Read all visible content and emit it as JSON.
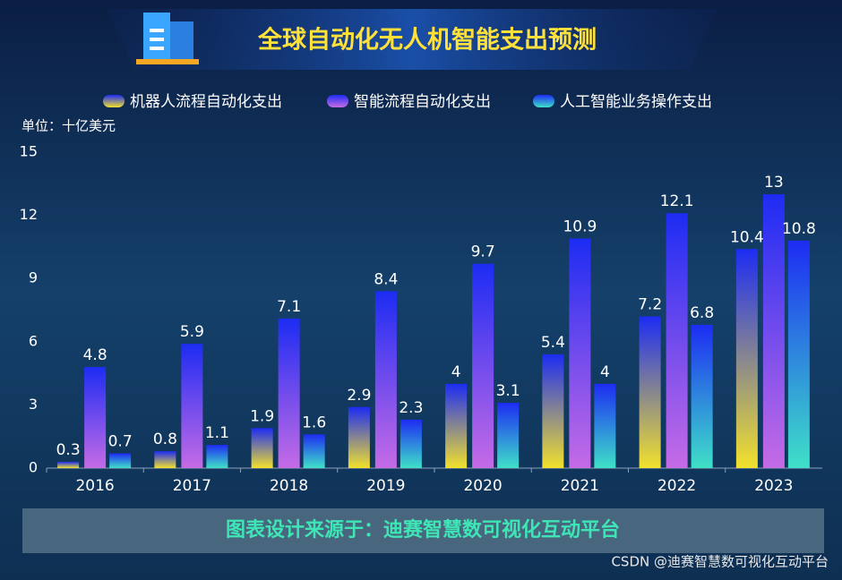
{
  "chart_data": {
    "type": "bar",
    "title": "全球自动化无人机智能支出预测",
    "unit_label": "单位：十亿美元",
    "categories": [
      "2016",
      "2017",
      "2018",
      "2019",
      "2020",
      "2021",
      "2022",
      "2023"
    ],
    "series": [
      {
        "name": "机器人流程自动化支出",
        "color": "#f2e12c",
        "values": [
          0.3,
          0.8,
          1.9,
          2.9,
          4,
          5.4,
          7.2,
          10.4
        ]
      },
      {
        "name": "智能流程自动化支出",
        "color": "#c56be6",
        "values": [
          4.8,
          5.9,
          7.1,
          8.4,
          9.7,
          10.9,
          12.1,
          13
        ]
      },
      {
        "name": "人工智能业务操作支出",
        "color": "#3fe0c8",
        "values": [
          0.7,
          1.1,
          1.6,
          2.3,
          3.1,
          4,
          6.8,
          10.8
        ]
      }
    ],
    "ylim": [
      0,
      15
    ],
    "yticks": [
      0,
      3,
      6,
      9,
      12,
      15
    ],
    "footer": "图表设计来源于：迪赛智慧数可视化互动平台",
    "watermark": "CSDN @迪赛智慧数可视化互动平台"
  }
}
